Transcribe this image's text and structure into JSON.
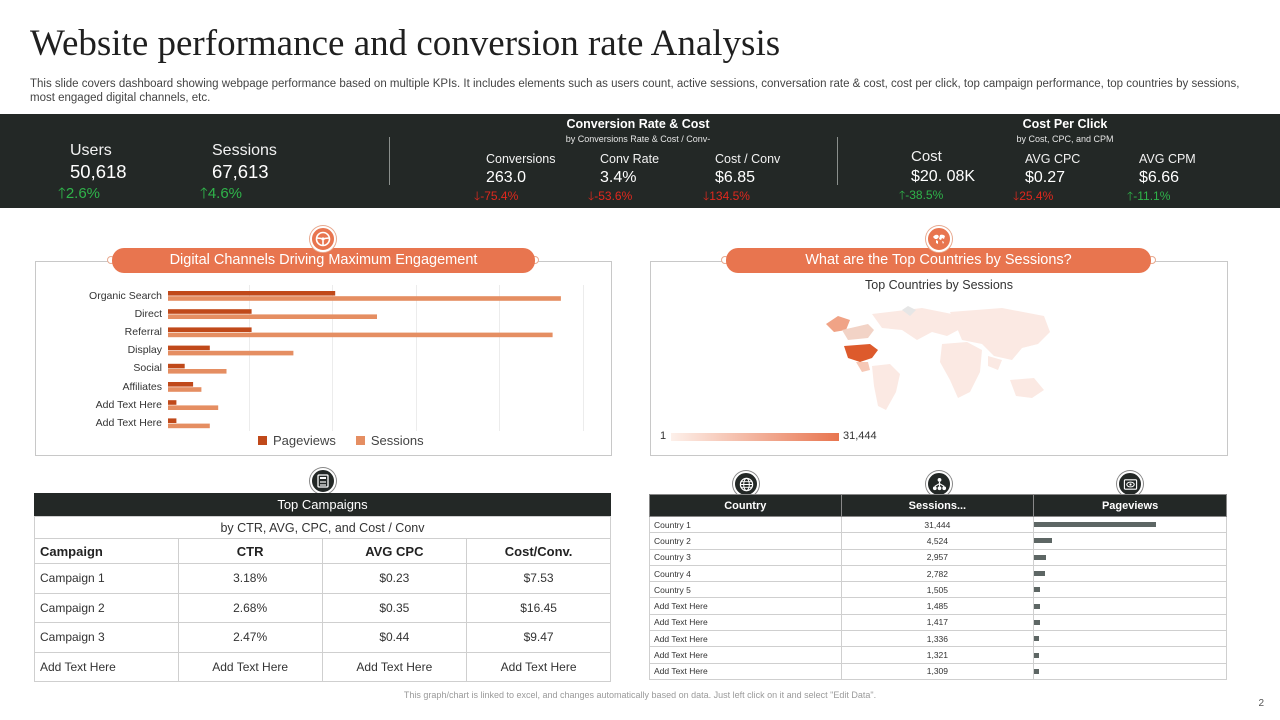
{
  "title": "Website performance and conversion rate Analysis",
  "subtitle": "This slide covers dashboard showing webpage performance based on multiple KPIs. It includes elements such as users count, active sessions, conversation rate & cost, cost per click, top campaign performance, top countries by sessions, most engaged digital channels, etc.",
  "kpis": {
    "users": {
      "label": "Users",
      "value": "50,618",
      "change": "2.6%"
    },
    "sessions": {
      "label": "Sessions",
      "value": "67,613",
      "change": "4.6%"
    },
    "conversion_group": {
      "title": "Conversion  Rate & Cost",
      "subtitle": "by Conversions Rate & Cost / Conv-",
      "items": [
        {
          "label": "Conversions",
          "value": "263.0",
          "change": "-75.4%"
        },
        {
          "label": "Conv  Rate",
          "value": "3.4%",
          "change": "-53.6%"
        },
        {
          "label": "Cost / Conv",
          "value": "$6.85",
          "change": "134.5%"
        }
      ]
    },
    "cpc_group": {
      "title": "Cost  Per Click",
      "subtitle": "by Cost, CPC, and CPM",
      "items": [
        {
          "label": "Cost",
          "value": "$20. 08K",
          "change": "-38.5%"
        },
        {
          "label": "AVG CPC",
          "value": "$0.27",
          "change": "25.4%"
        },
        {
          "label": "AVG CPM",
          "value": "$6.66",
          "change": "-11.1%"
        }
      ]
    }
  },
  "channels_panel": {
    "title": "Digital Channels Driving Maximum Engagement",
    "icon": "steering-wheel-icon"
  },
  "chart_data": {
    "type": "bar",
    "orientation": "horizontal",
    "categories": [
      "Organic Search",
      "Direct",
      "Referral",
      "Display",
      "Social",
      "Affiliates",
      "Add Text Here",
      "Add Text Here"
    ],
    "series": [
      {
        "name": "Pageviews",
        "color": "#c0491a",
        "values": [
          40,
          20,
          20,
          10,
          4,
          6,
          2,
          2
        ]
      },
      {
        "name": "Sessions",
        "color": "#e58e62",
        "values": [
          94,
          50,
          92,
          30,
          14,
          8,
          12,
          10
        ]
      }
    ],
    "xlim": [
      0,
      100
    ],
    "grid": true,
    "legend": "bottom"
  },
  "countries_panel": {
    "title": "What are the Top Countries by Sessions?",
    "map_title": "Top Countries by Sessions",
    "scale_min": "1",
    "scale_max": "31,444",
    "icon": "world-map-icon"
  },
  "campaigns": {
    "icon": "calculator-icon",
    "title": "Top Campaigns",
    "subtitle": "by CTR, AVG, CPC, and Cost / Conv",
    "headers": [
      "Campaign",
      "CTR",
      "AVG CPC",
      "Cost/Conv."
    ],
    "rows": [
      [
        "Campaign 1",
        "3.18%",
        "$0.23",
        "$7.53"
      ],
      [
        "Campaign 2",
        "2.68%",
        "$0.35",
        "$16.45"
      ],
      [
        "Campaign 3",
        "2.47%",
        "$0.44",
        "$9.47"
      ],
      [
        "Add Text Here",
        "Add Text Here",
        "Add Text Here",
        "Add Text Here"
      ]
    ]
  },
  "countries_table": {
    "headers": [
      "Country",
      "Sessions...",
      "Pageviews"
    ],
    "icons": [
      "globe-icon",
      "network-icon",
      "eye-icon"
    ],
    "rows": [
      {
        "country": "Country 1",
        "sessions": "31,444",
        "pageviews": 1.0
      },
      {
        "country": "Country 2",
        "sessions": "4,524",
        "pageviews": 0.15
      },
      {
        "country": "Country 3",
        "sessions": "2,957",
        "pageviews": 0.1
      },
      {
        "country": "Country 4",
        "sessions": "2,782",
        "pageviews": 0.09
      },
      {
        "country": "Country 5",
        "sessions": "1,505",
        "pageviews": 0.05
      },
      {
        "country": "Add Text Here",
        "sessions": "1,485",
        "pageviews": 0.05
      },
      {
        "country": "Add Text Here",
        "sessions": "1,417",
        "pageviews": 0.05
      },
      {
        "country": "Add Text Here",
        "sessions": "1,336",
        "pageviews": 0.04
      },
      {
        "country": "Add Text Here",
        "sessions": "1,321",
        "pageviews": 0.04
      },
      {
        "country": "Add Text Here",
        "sessions": "1,309",
        "pageviews": 0.04
      }
    ]
  },
  "footnote": "This graph/chart is linked to excel, and changes automatically based on data. Just left click on it and select \"Edit Data\".",
  "page_number": "2"
}
